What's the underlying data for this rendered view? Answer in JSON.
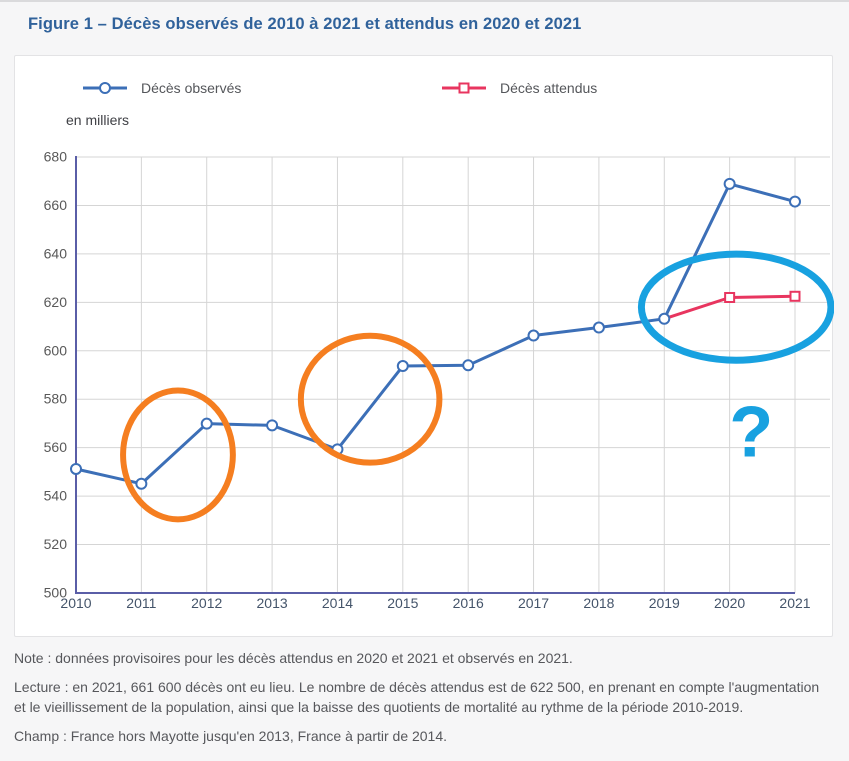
{
  "page": {
    "title": "Figure 1 – Décès observés de 2010 à 2021 et attendus en 2020 et 2021"
  },
  "legend": {
    "observed_label": "Décès observés",
    "expected_label": "Décès attendus"
  },
  "unit_label": "en milliers",
  "chart_data": {
    "type": "line",
    "title": "Figure 1 – Décès observés de 2010 à 2021 et attendus en 2020 et 2021",
    "unit": "en milliers",
    "x": [
      2010,
      2011,
      2012,
      2013,
      2014,
      2015,
      2016,
      2017,
      2018,
      2019,
      2020,
      2021
    ],
    "ylim": [
      500,
      680
    ],
    "ytick_step": 20,
    "grid": true,
    "legend_position": "top",
    "series": [
      {
        "name": "Décès observés",
        "color_key": "observed",
        "marker": "circle",
        "values": [
          551.2,
          545.1,
          569.9,
          569.2,
          559.3,
          593.7,
          594.0,
          606.3,
          609.6,
          613.2,
          668.9,
          661.6
        ]
      },
      {
        "name": "Décès attendus",
        "color_key": "expected",
        "marker": "square",
        "values": [
          null,
          null,
          null,
          null,
          null,
          null,
          null,
          null,
          null,
          613.2,
          622.0,
          622.5
        ],
        "marker_years": [
          2020,
          2021
        ]
      }
    ],
    "annotations": [
      {
        "type": "ellipse",
        "color_key": "orange",
        "cx_year": 2011.56,
        "cy_value": 557,
        "rx_years": 0.84,
        "ry_values": 26.6,
        "meaning": "highlight-dip-2011-2012"
      },
      {
        "type": "ellipse",
        "color_key": "orange",
        "cx_year": 2014.5,
        "cy_value": 580,
        "rx_years": 1.06,
        "ry_values": 26.2,
        "meaning": "highlight-dip-2014-2015"
      },
      {
        "type": "ellipse",
        "color_key": "cyan",
        "cx_year": 2020.1,
        "cy_value": 618,
        "rx_years": 1.45,
        "ry_values": 21.9,
        "meaning": "highlight-expected-2019-2021"
      },
      {
        "type": "text",
        "color_key": "cyan",
        "x_year": 2020.33,
        "y_value": 567,
        "text": "?",
        "font_size": 72,
        "meaning": "question-mark"
      }
    ]
  },
  "notes": {
    "note": "Note : données provisoires pour les décès attendus en 2020 et 2021 et observés en 2021.",
    "lecture": "Lecture : en 2021, 661 600 décès ont eu lieu. Le nombre de décès attendus est de 622 500, en prenant en compte l'augmentation et le vieillissement de la population, ainsi que la baisse des quotients de mortalité au rythme de la période 2010-2019.",
    "champ": "Champ : France hors Mayotte jusqu'en 2013, France à partir de 2014."
  },
  "colors": {
    "title_blue": "#30629b",
    "observed": "#3c6fb7",
    "expected": "#e8355f",
    "axis": "#5a5ea7",
    "grid": "#d5d5d5",
    "orange": "#f57e20",
    "cyan": "#18a1e0",
    "notes_text": "#56575b",
    "y_tick": "#595959",
    "x_tick": "#44546a"
  }
}
